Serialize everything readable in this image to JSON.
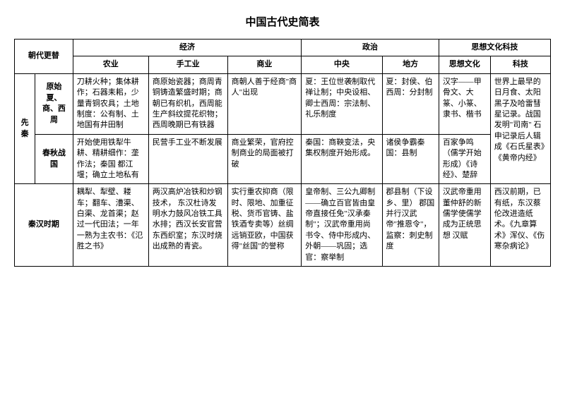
{
  "title": "中国古代史简表",
  "header": {
    "dynasty": "朝代更替",
    "economy": "经济",
    "politics": "政治",
    "culture_tech": "思想文化科技",
    "agriculture": "农业",
    "handicraft": "手工业",
    "commerce": "商业",
    "central": "中央",
    "local": "地方",
    "culture": "思想文化",
    "technology": "科技"
  },
  "row1": {
    "era": "先秦",
    "period": "原始夏、商、西周",
    "agriculture": "刀耕火种；集体耕作；石器耒耜，少量青铜农具；土地制度：公有制、土地国有井田制",
    "handicraft": "商原始瓷器；商周青铜铸造繁盛时期；商朝已有织机，西周能生产斜纹提花织物；西周晚期已有铁器",
    "commerce": "商朝人善于经商\"商人\"出现",
    "central": "夏：王位世袭制取代禅让制；中央设相、卿士西周：宗法制、礼乐制度",
    "local": "夏：封侯、伯 西周：分封制",
    "culture": "汉字——甲骨文、大篆、小篆、隶书、楷书",
    "tech": "世界上最早的日月食、太阳黑子及哈雷彗星记录。战国发明\"司南\" 石申记录后人辑成《石氏星表》《黄帝内经》"
  },
  "row2": {
    "period": "春秋战国",
    "agriculture": "开始使用铁犁牛耕、精耕细作：垄作法；秦国 都江堰；确立土地私有",
    "handicraft": "民营手工业不断发展",
    "commerce": "商业繁荣，官府控制商业的局面被打破",
    "central": "秦国：商鞅变法，央集权制度开始形成。",
    "local": "诸侯争霸秦国：县制",
    "culture": "百家争鸣（儒学开始形成）《诗经》、楚辞"
  },
  "row3": {
    "era": "秦汉时期",
    "agriculture": "耦犁、犁壁、耧车；翻车、漕渠、白渠、龙首渠；赵过一代田法；一年一熟为主农书：《氾胜之书》",
    "handicraft": "两汉高炉冶铁和炒钢技术， 东汉杜诗发明水力鼓风冶铁工具水排；西汉长安官营东西织室；东汉时烧出成熟的青瓷。",
    "commerce": "实行重农抑商（限时、限地、加重征税、货币官铸、盐铁酒专卖等）丝绸远销亚欧，中国获得\"丝国\"的誉称",
    "central": "皇帝制、三公九卿制——确立百官皆由皇帝直接任免\"汉承秦制\"；汉武帝重用尚书令、侍中形成内、外朝——巩固；选官：察举制",
    "local": "郡县制（下设乡、里） 郡国并行汉武帝\"推恩令\"，监察：刺史制度",
    "culture": "汉武帝重用董仲舒的新儒学使儒学成为正统思想 汉赋",
    "tech": "西汉前期，已有纸，东汉蔡伦改进造纸术。《九章算术》浑仪、《伤寒杂病论》"
  }
}
